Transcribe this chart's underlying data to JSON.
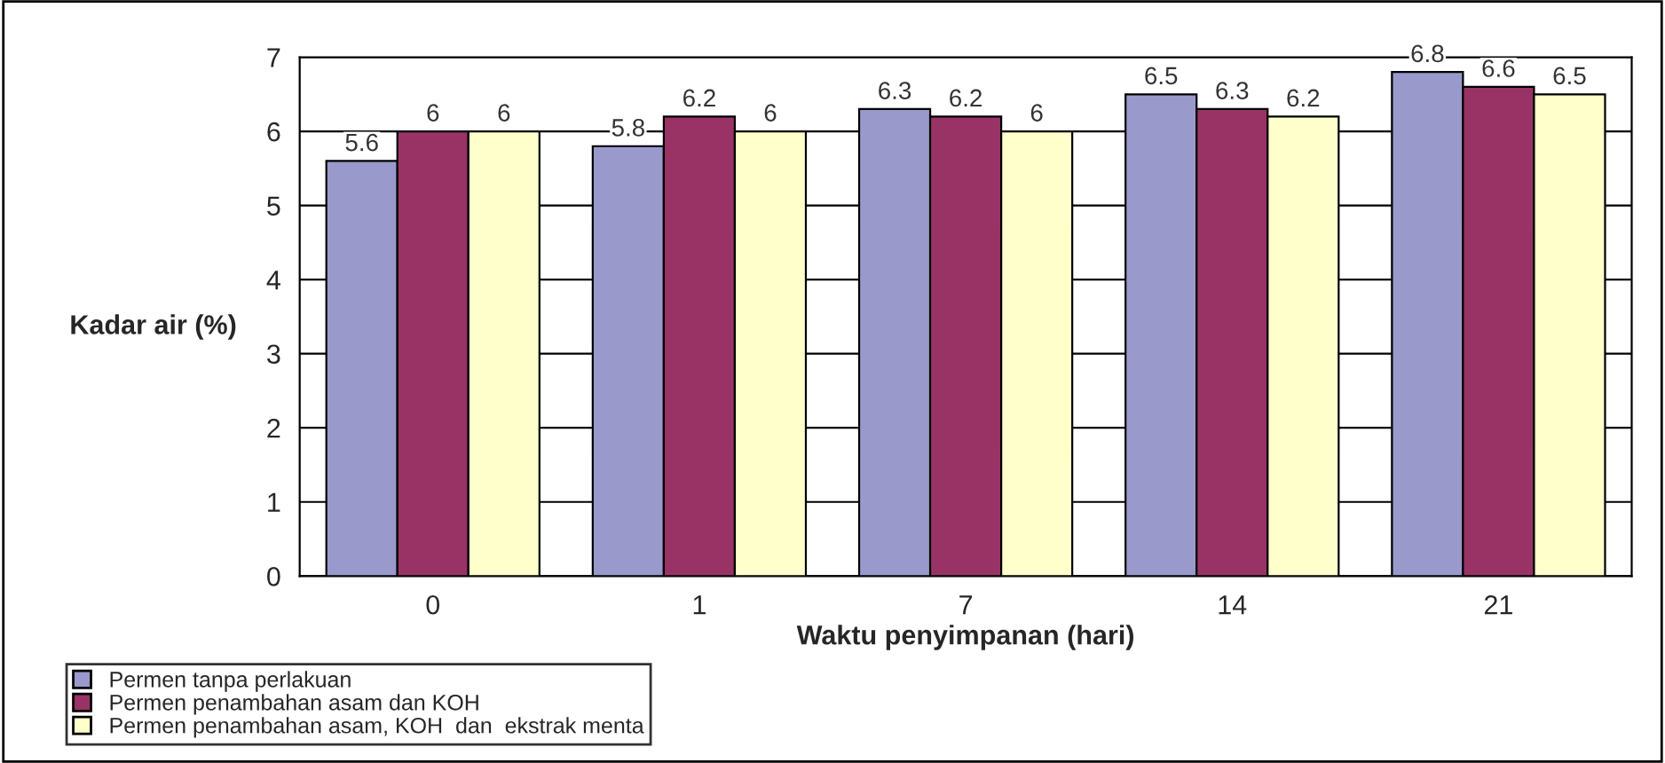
{
  "chart_data": {
    "type": "bar",
    "xlabel": "Waktu penyimpanan (hari)",
    "ylabel": "Kadar air (%)",
    "categories": [
      "0",
      "1",
      "7",
      "14",
      "21"
    ],
    "series": [
      {
        "name": "Permen tanpa perlakuan",
        "color": "#9999cc",
        "values": [
          5.6,
          5.8,
          6.3,
          6.5,
          6.8
        ]
      },
      {
        "name": "Permen penambahan asam dan KOH",
        "color": "#993366",
        "values": [
          6,
          6.2,
          6.2,
          6.3,
          6.6
        ]
      },
      {
        "name": "Permen penambahan asam, KOH  dan  ekstrak menta",
        "color": "#ffffcc",
        "values": [
          6,
          6,
          6,
          6.2,
          6.5
        ]
      }
    ],
    "ylim": [
      0,
      7
    ],
    "yticks": [
      0,
      1,
      2,
      3,
      4,
      5,
      6,
      7
    ],
    "grid": "y",
    "legend": "bottom left",
    "data_labels": true
  }
}
